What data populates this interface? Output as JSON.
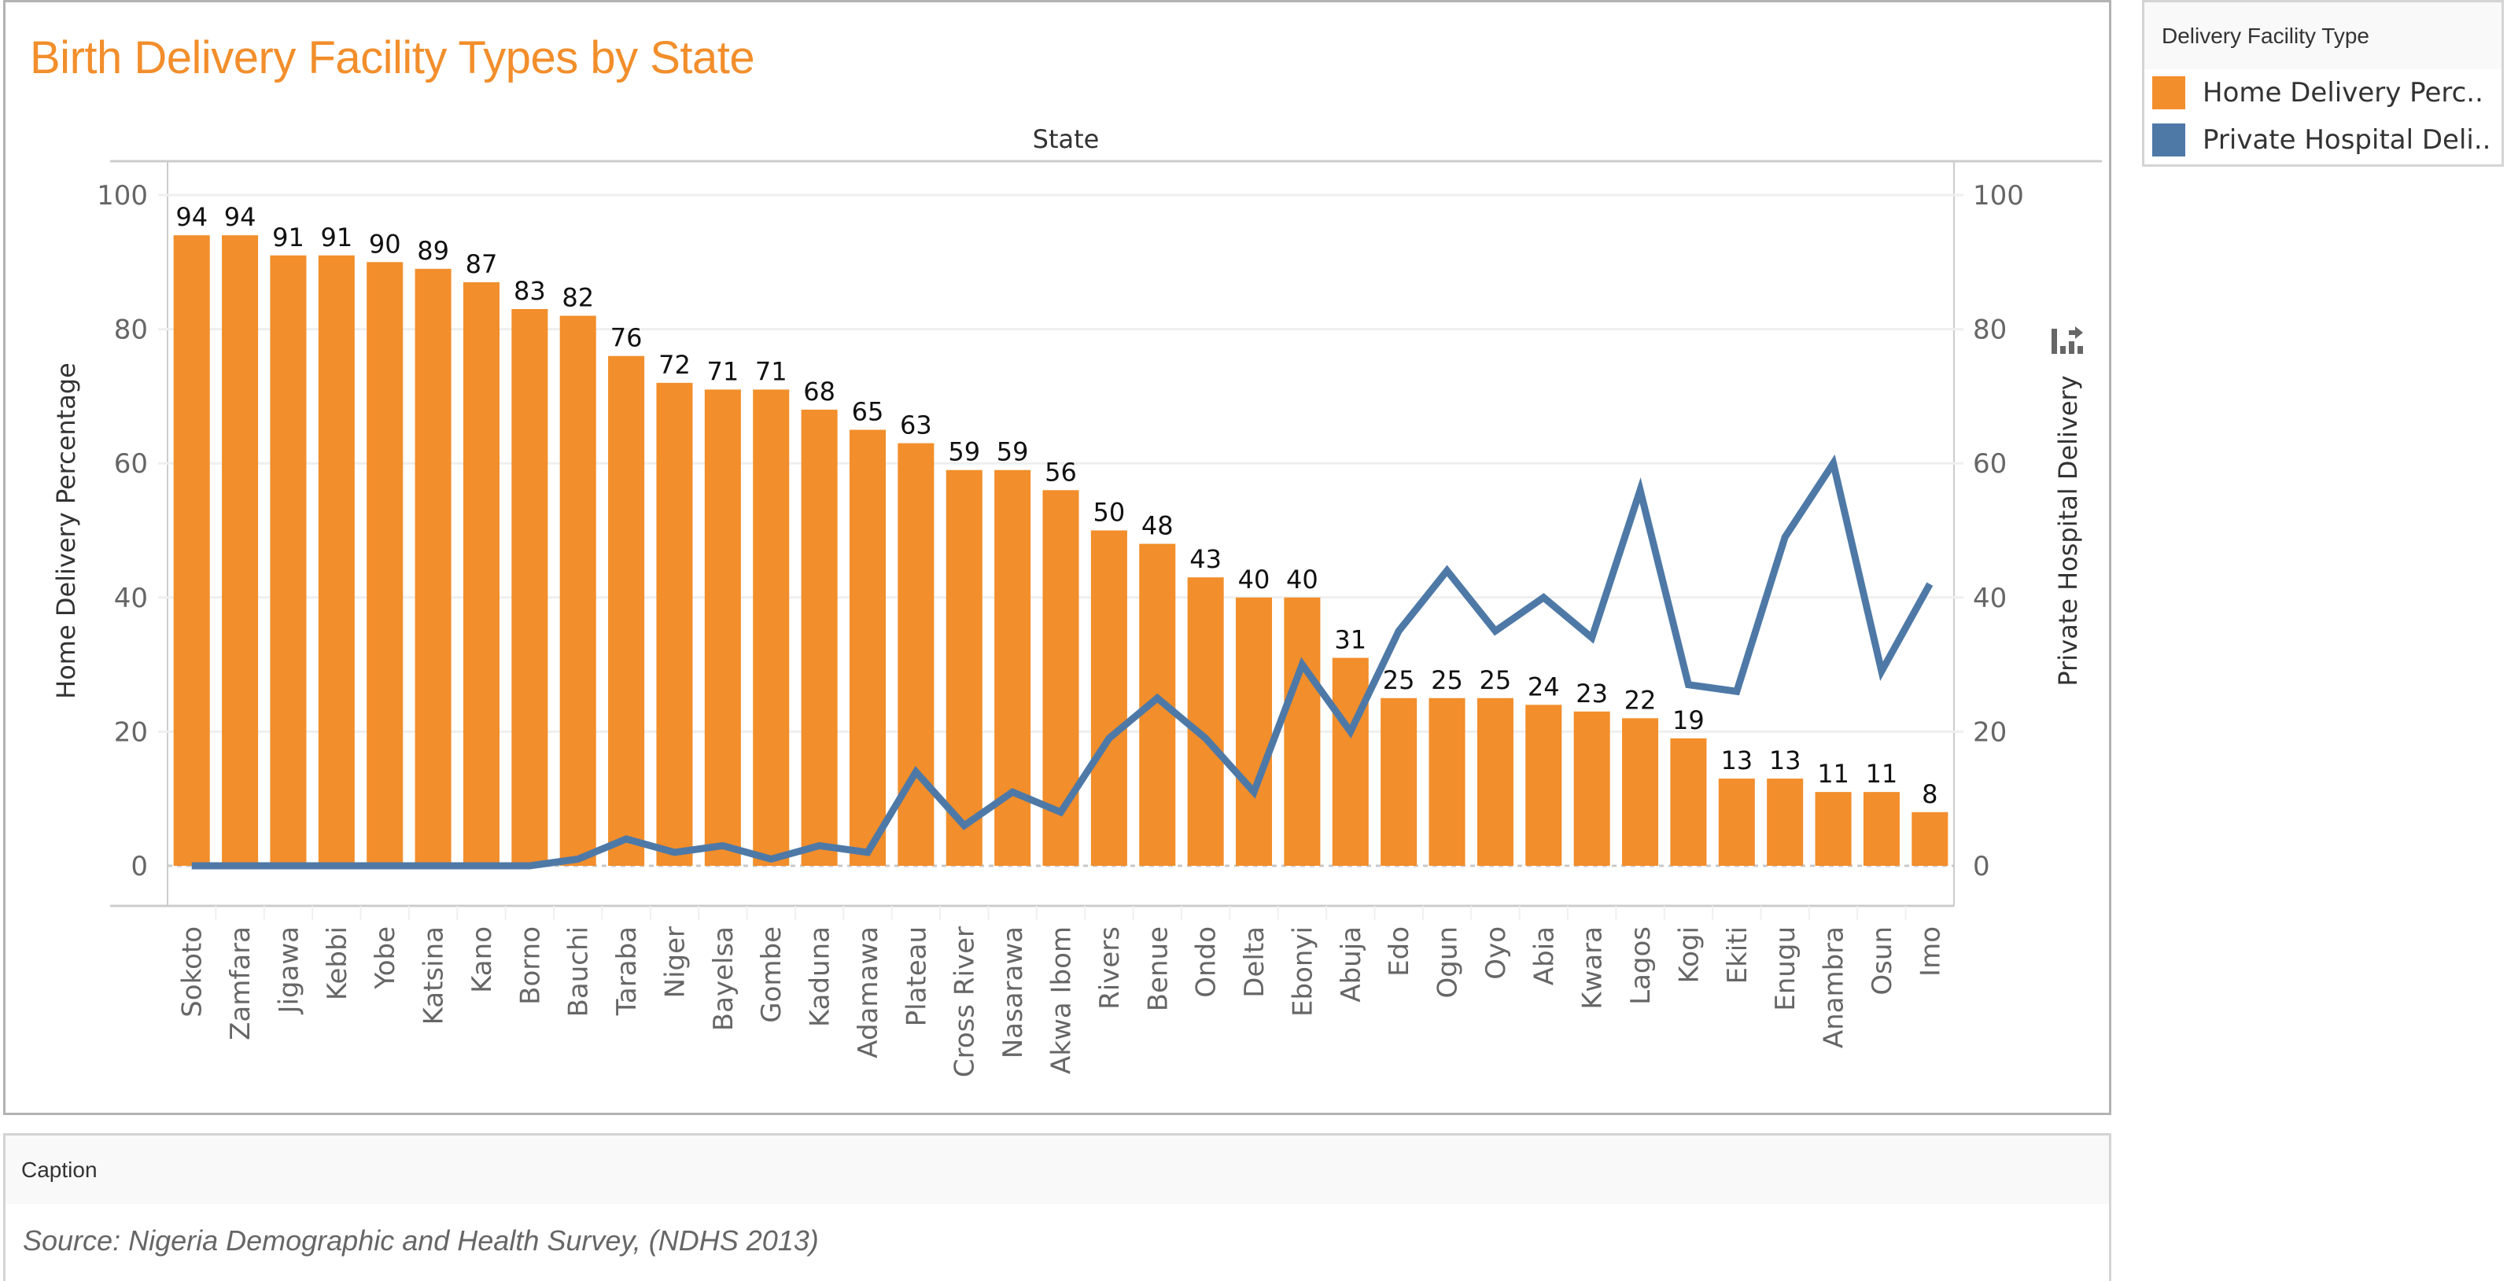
{
  "title": "Birth Delivery Facility Types by State",
  "legend": {
    "title": "Delivery Facility Type",
    "items": [
      {
        "label": "Home Delivery Perc..",
        "color": "#f28e2b"
      },
      {
        "label": "Private Hospital Deli..",
        "color": "#4e79a7"
      }
    ]
  },
  "caption": {
    "title": "Caption",
    "text": "Source: Nigeria Demographic and Health Survey, (NDHS 2013)"
  },
  "icons": {
    "swap_axis": "swap-axis-icon"
  },
  "chart_data": {
    "type": "bar",
    "title": "Birth Delivery Facility Types by State",
    "column_header": "State",
    "xlabel": "State",
    "ylabel": "Home Delivery Percentage",
    "y2label": "Private Hospital Delivery",
    "ylim": [
      0,
      100
    ],
    "y2lim": [
      0,
      100
    ],
    "yticks": [
      0,
      20,
      40,
      60,
      80,
      100
    ],
    "y2ticks": [
      0,
      20,
      40,
      60,
      80,
      100
    ],
    "grid": true,
    "legend_position": "top-right",
    "categories": [
      "Sokoto",
      "Zamfara",
      "Jigawa",
      "Kebbi",
      "Yobe",
      "Katsina",
      "Kano",
      "Borno",
      "Bauchi",
      "Taraba",
      "Niger",
      "Bayelsa",
      "Gombe",
      "Kaduna",
      "Adamawa",
      "Plateau",
      "Cross River",
      "Nasarawa",
      "Akwa Ibom",
      "Rivers",
      "Benue",
      "Ondo",
      "Delta",
      "Ebonyi",
      "Abuja",
      "Edo",
      "Ogun",
      "Oyo",
      "Abia",
      "Kwara",
      "Lagos",
      "Kogi",
      "Ekiti",
      "Enugu",
      "Anambra",
      "Osun",
      "Imo"
    ],
    "series": [
      {
        "name": "Home Delivery Percentage",
        "type": "bar",
        "axis": "left",
        "color": "#f28e2b",
        "show_labels": true,
        "values": [
          94,
          94,
          91,
          91,
          90,
          89,
          87,
          83,
          82,
          76,
          72,
          71,
          71,
          68,
          65,
          63,
          59,
          59,
          56,
          50,
          48,
          43,
          40,
          40,
          31,
          25,
          25,
          25,
          24,
          23,
          22,
          19,
          13,
          13,
          11,
          11,
          8
        ]
      },
      {
        "name": "Private Hospital Delivery",
        "type": "line",
        "axis": "right",
        "color": "#4e79a7",
        "show_labels": false,
        "values": [
          0,
          0,
          0,
          0,
          0,
          0,
          0,
          0,
          1,
          4,
          2,
          3,
          1,
          3,
          2,
          14,
          6,
          11,
          8,
          19,
          25,
          19,
          11,
          30,
          20,
          35,
          44,
          35,
          40,
          34,
          56,
          27,
          26,
          49,
          60,
          29,
          42
        ]
      }
    ]
  }
}
